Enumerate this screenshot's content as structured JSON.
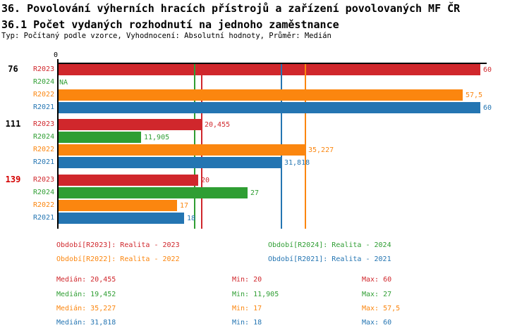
{
  "header": {
    "title1": "36. Povolování výherních hracích přístrojů a zařízení povolovaných MF ČR",
    "title2": "36.1 Počet vydaných rozhodnutí na jednoho zaměstnance",
    "subtitle": "Typ: Počítaný podle vzorce, Vyhodnocení: Absolutní hodnoty, Průměr: Medián"
  },
  "chart_data": {
    "type": "bar",
    "orientation": "horizontal",
    "title": "36.1 Počet vydaných rozhodnutí na jednoho zaměstnance",
    "x_axis": {
      "min": 0,
      "max": 60,
      "zero_label": "0",
      "grid": false
    },
    "series_order": [
      "R2023",
      "R2024",
      "R2022",
      "R2021"
    ],
    "series_colors": {
      "R2023": "#d0272c",
      "R2024": "#2f9e33",
      "R2022": "#fb860f",
      "R2021": "#2475b2"
    },
    "groups": [
      {
        "label": "76",
        "label_color": "#000000",
        "bars": [
          {
            "series": "R2023",
            "value": 60,
            "display": "60"
          },
          {
            "series": "R2024",
            "value": null,
            "display": "NA"
          },
          {
            "series": "R2022",
            "value": 57.5,
            "display": "57,5"
          },
          {
            "series": "R2021",
            "value": 60,
            "display": "60"
          }
        ]
      },
      {
        "label": "111",
        "label_color": "#000000",
        "bars": [
          {
            "series": "R2023",
            "value": 20.455,
            "display": "20,455"
          },
          {
            "series": "R2024",
            "value": 11.905,
            "display": "11,905"
          },
          {
            "series": "R2022",
            "value": 35.227,
            "display": "35,227"
          },
          {
            "series": "R2021",
            "value": 31.818,
            "display": "31,818"
          }
        ]
      },
      {
        "label": "139",
        "label_color": "#d40000",
        "bars": [
          {
            "series": "R2023",
            "value": 20,
            "display": "20"
          },
          {
            "series": "R2024",
            "value": 27,
            "display": "27"
          },
          {
            "series": "R2022",
            "value": 17,
            "display": "17"
          },
          {
            "series": "R2021",
            "value": 18,
            "display": "18"
          }
        ]
      }
    ],
    "median_lines": [
      {
        "series": "R2023",
        "value": 20.455
      },
      {
        "series": "R2024",
        "value": 19.452
      },
      {
        "series": "R2022",
        "value": 35.227
      },
      {
        "series": "R2021",
        "value": 31.818
      }
    ]
  },
  "legend": {
    "items": [
      {
        "series": "R2023",
        "text": "Období[R2023]: Realita - 2023"
      },
      {
        "series": "R2024",
        "text": "Období[R2024]: Realita - 2024"
      },
      {
        "series": "R2022",
        "text": "Období[R2022]: Realita - 2022"
      },
      {
        "series": "R2021",
        "text": "Období[R2021]: Realita - 2021"
      }
    ]
  },
  "stats": {
    "rows": [
      {
        "series": "R2023",
        "median": "Medián: 20,455",
        "min": "Min: 20",
        "max": "Max: 60"
      },
      {
        "series": "R2024",
        "median": "Medián: 19,452",
        "min": "Min: 11,905",
        "max": "Max: 27"
      },
      {
        "series": "R2022",
        "median": "Medián: 35,227",
        "min": "Min: 17",
        "max": "Max: 57,5"
      },
      {
        "series": "R2021",
        "median": "Medián: 31,818",
        "min": "Min: 18",
        "max": "Max: 60"
      }
    ]
  }
}
